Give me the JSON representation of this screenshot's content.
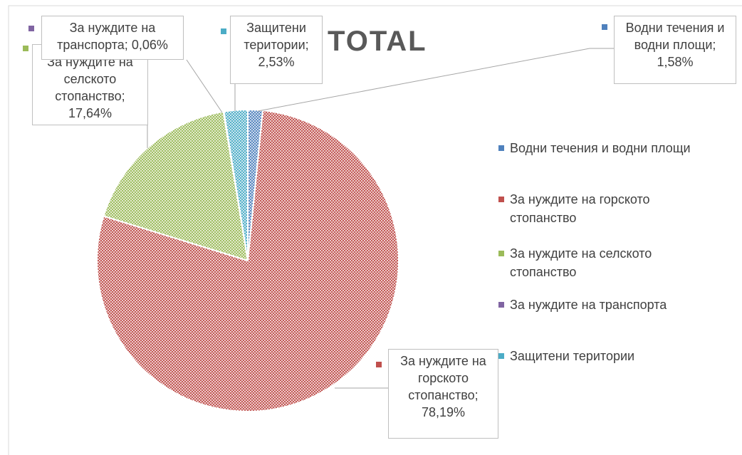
{
  "chart_data": {
    "type": "pie",
    "title": "TOTAL",
    "categories": [
      "Водни течения и водни площи",
      "За нуждите на горското стопанство",
      "За нуждите на селското стопанство",
      "За нуждите на транспорта",
      "Защитени територии"
    ],
    "values": [
      1.58,
      78.19,
      17.64,
      0.06,
      2.53
    ],
    "value_labels": [
      "1,58%",
      "78,19%",
      "17,64%",
      "0,06%",
      "2,53%"
    ],
    "colors": [
      "#4f81bd",
      "#c0504d",
      "#9bbb59",
      "#8064a2",
      "#4bacc6"
    ],
    "legend": "right"
  }
}
